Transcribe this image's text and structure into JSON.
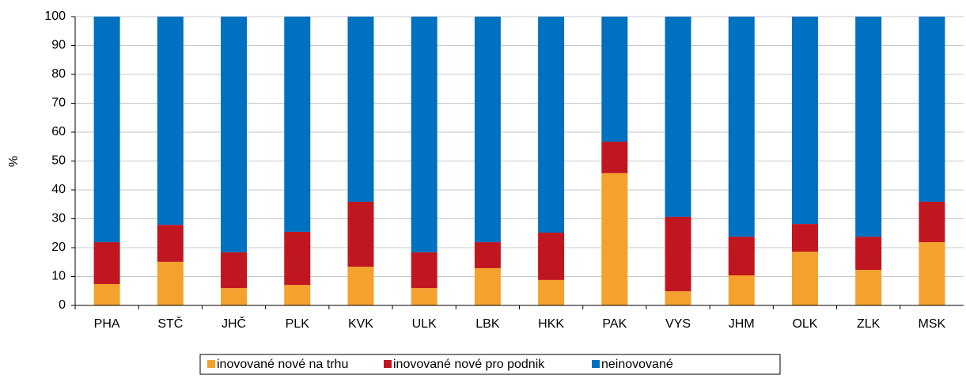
{
  "chart_data": {
    "type": "stacked_bar",
    "y_label": "%",
    "categories": [
      "PHA",
      "STČ",
      "JHČ",
      "PLK",
      "KVK",
      "ULK",
      "LBK",
      "HKK",
      "PAK",
      "VYS",
      "JHM",
      "OLK",
      "ZLK",
      "MSK"
    ],
    "series": [
      {
        "name": "inovované nové na trhu",
        "color": "#f5a12d",
        "values": [
          7.4,
          15.1,
          6.0,
          7.1,
          13.4,
          6.0,
          12.9,
          8.8,
          45.8,
          4.9,
          10.4,
          18.6,
          12.3,
          21.9
        ]
      },
      {
        "name": "inovované nové pro podnik",
        "color": "#c0161f",
        "values": [
          14.5,
          12.8,
          12.4,
          18.4,
          22.5,
          12.4,
          9.0,
          16.4,
          10.9,
          25.8,
          13.4,
          9.6,
          11.5,
          14.0
        ]
      },
      {
        "name": "neinovované",
        "color": "#0070c0",
        "values": [
          78.1,
          72.1,
          81.6,
          74.5,
          64.1,
          81.6,
          78.1,
          74.8,
          43.3,
          69.3,
          76.2,
          71.8,
          76.2,
          64.1
        ]
      }
    ],
    "ylim": [
      0,
      100
    ],
    "yticks": [
      0,
      10,
      20,
      30,
      40,
      50,
      60,
      70,
      80,
      90,
      100
    ],
    "grid": true
  }
}
